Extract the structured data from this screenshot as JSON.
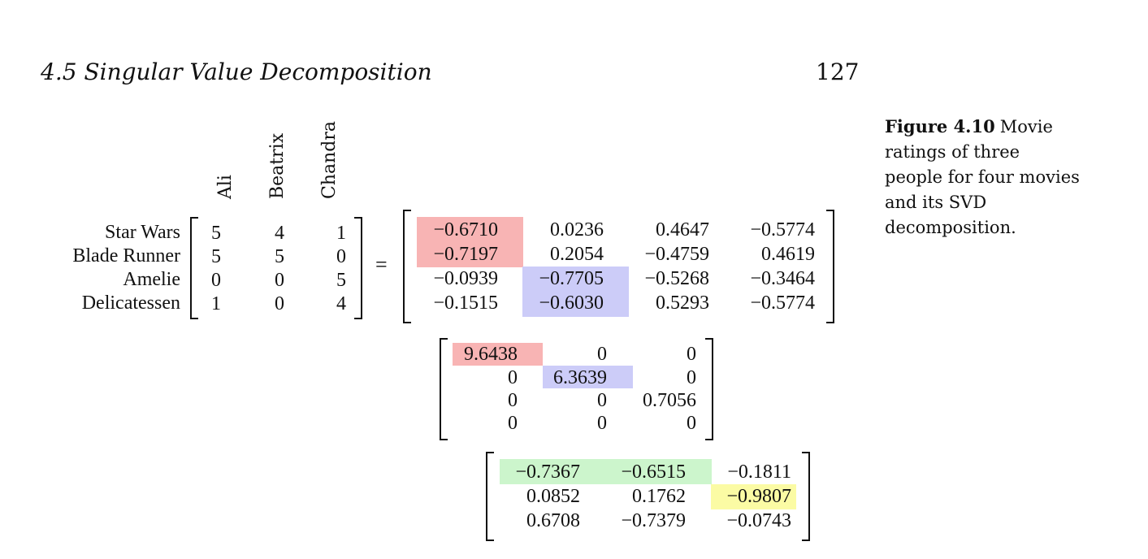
{
  "header": {
    "section_title": "4.5  Singular Value Decomposition",
    "page_number": "127"
  },
  "caption": {
    "label": "Figure 4.10",
    "text": "Movie ratings of three people for four movies and its SVD decomposition."
  },
  "ratings": {
    "people": [
      "Ali",
      "Beatrix",
      "Chandra"
    ],
    "movies": [
      "Star Wars",
      "Blade Runner",
      "Amelie",
      "Delicatessen"
    ],
    "values": [
      [
        "5",
        "4",
        "1"
      ],
      [
        "5",
        "5",
        "0"
      ],
      [
        "0",
        "0",
        "5"
      ],
      [
        "1",
        "0",
        "4"
      ]
    ]
  },
  "equals_sign": "=",
  "U": [
    [
      "−0.6710",
      "0.0236",
      "0.4647",
      "−0.5774"
    ],
    [
      "−0.7197",
      "0.2054",
      "−0.4759",
      "0.4619"
    ],
    [
      "−0.0939",
      "−0.7705",
      "−0.5268",
      "−0.3464"
    ],
    [
      "−0.1515",
      "−0.6030",
      "0.5293",
      "−0.5774"
    ]
  ],
  "Sigma": [
    [
      "9.6438",
      "0",
      "0"
    ],
    [
      "0",
      "6.3639",
      "0"
    ],
    [
      "0",
      "0",
      "0.7056"
    ],
    [
      "0",
      "0",
      "0"
    ]
  ],
  "Vt": [
    [
      "−0.7367",
      "−0.6515",
      "−0.1811"
    ],
    [
      "0.0852",
      "0.1762",
      "−0.9807"
    ],
    [
      "0.6708",
      "−0.7379",
      "−0.0743"
    ]
  ],
  "highlight_colors": {
    "red": "#f8b4b4",
    "blue": "#ccccf8",
    "green": "#ccf5cc",
    "yellow": "#fbfba4"
  }
}
